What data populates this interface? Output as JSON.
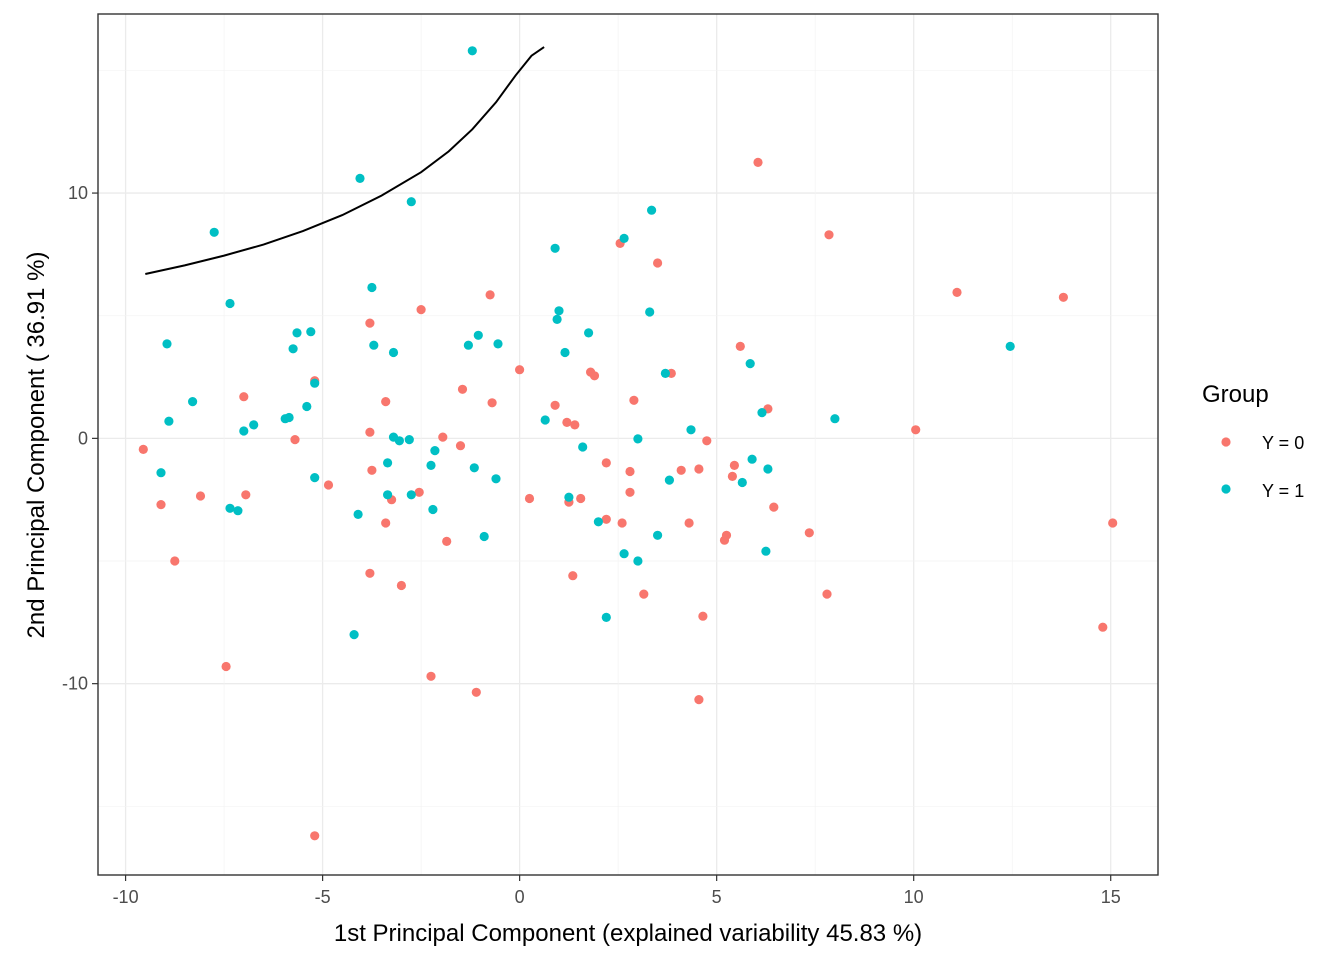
{
  "chart_data": {
    "type": "scatter",
    "title": "",
    "xlabel": "1st Principal Component (explained variability 45.83 %)",
    "ylabel": "2nd Principal Component ( 36.91 %)",
    "xlim": [
      -10.7,
      16.2
    ],
    "ylim": [
      -17.8,
      17.3
    ],
    "xticks": [
      -10,
      -5,
      0,
      5,
      10,
      15
    ],
    "yticks": [
      -10,
      0,
      10
    ],
    "xtick_labels": [
      "-10",
      "-5",
      "0",
      "5",
      "10",
      "15"
    ],
    "ytick_labels": [
      "-10",
      "0",
      "10"
    ],
    "grid": true,
    "legend": {
      "title": "Group",
      "position": "right",
      "entries": [
        "Y = 0",
        "Y = 1"
      ]
    },
    "series": [
      {
        "name": "Y = 0",
        "color": "#F8766D",
        "points": [
          [
            -9.55,
            -0.45
          ],
          [
            -9.1,
            -2.7
          ],
          [
            -8.75,
            -5.0
          ],
          [
            -8.1,
            -2.35
          ],
          [
            -7.45,
            -9.3
          ],
          [
            -7.0,
            1.7
          ],
          [
            -6.95,
            -2.3
          ],
          [
            -5.7,
            -0.05
          ],
          [
            -5.2,
            2.35
          ],
          [
            -5.2,
            -16.2
          ],
          [
            -4.85,
            -1.9
          ],
          [
            -3.8,
            4.7
          ],
          [
            -3.8,
            0.25
          ],
          [
            -3.75,
            -1.3
          ],
          [
            -3.8,
            -5.5
          ],
          [
            -3.4,
            1.5
          ],
          [
            -3.4,
            -3.45
          ],
          [
            -3.25,
            -2.5
          ],
          [
            -3.0,
            -6.0
          ],
          [
            -2.5,
            5.25
          ],
          [
            -2.55,
            -2.2
          ],
          [
            -2.25,
            -9.7
          ],
          [
            -1.95,
            0.05
          ],
          [
            -1.85,
            -4.2
          ],
          [
            -1.5,
            -0.3
          ],
          [
            -1.45,
            2.0
          ],
          [
            -1.1,
            -10.35
          ],
          [
            -0.75,
            5.85
          ],
          [
            -0.7,
            1.45
          ],
          [
            0.0,
            2.8
          ],
          [
            0.25,
            -2.45
          ],
          [
            0.9,
            1.35
          ],
          [
            1.2,
            0.65
          ],
          [
            1.25,
            -2.6
          ],
          [
            1.35,
            -5.6
          ],
          [
            1.4,
            0.55
          ],
          [
            1.55,
            -2.45
          ],
          [
            1.8,
            2.7
          ],
          [
            1.9,
            2.55
          ],
          [
            2.2,
            -1.0
          ],
          [
            2.2,
            -3.3
          ],
          [
            2.55,
            7.95
          ],
          [
            2.6,
            -3.45
          ],
          [
            2.8,
            -1.35
          ],
          [
            2.8,
            -2.2
          ],
          [
            2.9,
            1.55
          ],
          [
            3.15,
            -6.35
          ],
          [
            3.5,
            7.15
          ],
          [
            3.85,
            2.65
          ],
          [
            4.1,
            -1.3
          ],
          [
            4.3,
            -3.45
          ],
          [
            4.55,
            -1.25
          ],
          [
            4.65,
            -7.25
          ],
          [
            4.55,
            -10.65
          ],
          [
            4.75,
            -0.1
          ],
          [
            5.2,
            -4.15
          ],
          [
            5.25,
            -3.95
          ],
          [
            5.4,
            -1.55
          ],
          [
            5.45,
            -1.1
          ],
          [
            5.6,
            3.75
          ],
          [
            6.05,
            11.25
          ],
          [
            6.3,
            1.2
          ],
          [
            6.45,
            -2.8
          ],
          [
            7.35,
            -3.85
          ],
          [
            7.8,
            -6.35
          ],
          [
            7.85,
            8.3
          ],
          [
            10.05,
            0.35
          ],
          [
            11.1,
            5.95
          ],
          [
            13.8,
            5.75
          ],
          [
            14.8,
            -7.7
          ],
          [
            15.05,
            -3.45
          ]
        ]
      },
      {
        "name": "Y = 1",
        "color": "#00BFC4",
        "points": [
          [
            -9.1,
            -1.4
          ],
          [
            -8.95,
            3.85
          ],
          [
            -8.9,
            0.7
          ],
          [
            -8.3,
            1.5
          ],
          [
            -7.75,
            8.4
          ],
          [
            -7.35,
            5.5
          ],
          [
            -7.35,
            -2.85
          ],
          [
            -7.15,
            -2.95
          ],
          [
            -7.0,
            0.3
          ],
          [
            -6.75,
            0.55
          ],
          [
            -5.95,
            0.8
          ],
          [
            -5.85,
            0.85
          ],
          [
            -5.75,
            3.65
          ],
          [
            -5.65,
            4.3
          ],
          [
            -5.4,
            1.3
          ],
          [
            -5.3,
            4.35
          ],
          [
            -5.2,
            -1.6
          ],
          [
            -5.2,
            2.25
          ],
          [
            -4.2,
            -8.0
          ],
          [
            -4.1,
            -3.1
          ],
          [
            -4.05,
            10.6
          ],
          [
            -3.75,
            6.15
          ],
          [
            -3.7,
            3.8
          ],
          [
            -3.35,
            -1.0
          ],
          [
            -3.35,
            -2.3
          ],
          [
            -3.2,
            3.5
          ],
          [
            -3.2,
            0.05
          ],
          [
            -3.05,
            -0.1
          ],
          [
            -2.8,
            -0.05
          ],
          [
            -2.75,
            -2.3
          ],
          [
            -2.75,
            9.65
          ],
          [
            -2.25,
            -1.1
          ],
          [
            -2.2,
            -2.9
          ],
          [
            -2.15,
            -0.5
          ],
          [
            -1.3,
            3.8
          ],
          [
            -1.15,
            -1.2
          ],
          [
            -1.2,
            15.8
          ],
          [
            -1.05,
            4.2
          ],
          [
            -0.9,
            -4.0
          ],
          [
            -0.6,
            -1.65
          ],
          [
            -0.55,
            3.85
          ],
          [
            0.65,
            0.75
          ],
          [
            0.9,
            7.75
          ],
          [
            0.95,
            4.85
          ],
          [
            1.0,
            5.2
          ],
          [
            1.15,
            3.5
          ],
          [
            1.25,
            -2.4
          ],
          [
            1.6,
            -0.35
          ],
          [
            1.75,
            4.3
          ],
          [
            2.0,
            -3.4
          ],
          [
            2.2,
            -7.3
          ],
          [
            2.65,
            8.15
          ],
          [
            2.65,
            -4.7
          ],
          [
            3.0,
            -5.0
          ],
          [
            3.0,
            -0.02
          ],
          [
            3.3,
            5.15
          ],
          [
            3.35,
            9.3
          ],
          [
            3.5,
            -3.95
          ],
          [
            3.7,
            2.65
          ],
          [
            3.8,
            -1.7
          ],
          [
            4.35,
            0.35
          ],
          [
            5.65,
            -1.8
          ],
          [
            5.85,
            3.05
          ],
          [
            5.9,
            -0.85
          ],
          [
            6.15,
            1.05
          ],
          [
            6.25,
            -4.6
          ],
          [
            6.3,
            -1.25
          ],
          [
            8.0,
            0.8
          ],
          [
            12.45,
            3.75
          ]
        ]
      }
    ],
    "annotation_line": {
      "color": "#000000",
      "points": [
        [
          -9.5,
          6.7
        ],
        [
          -8.5,
          7.05
        ],
        [
          -7.5,
          7.45
        ],
        [
          -6.5,
          7.9
        ],
        [
          -5.5,
          8.45
        ],
        [
          -4.5,
          9.1
        ],
        [
          -3.5,
          9.9
        ],
        [
          -2.5,
          10.85
        ],
        [
          -1.8,
          11.7
        ],
        [
          -1.2,
          12.6
        ],
        [
          -0.6,
          13.7
        ],
        [
          -0.1,
          14.8
        ],
        [
          0.3,
          15.6
        ],
        [
          0.62,
          15.95
        ]
      ]
    }
  }
}
